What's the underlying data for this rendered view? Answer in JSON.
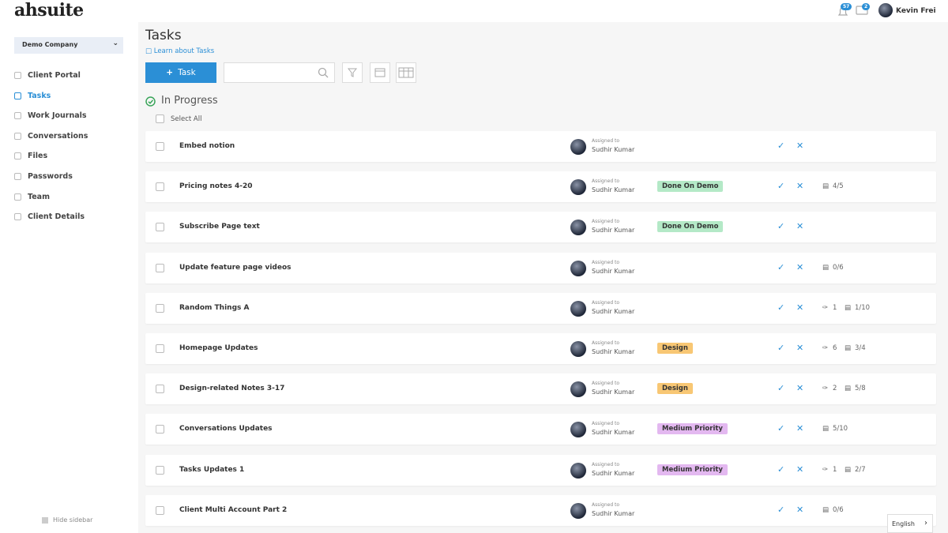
{
  "header": {
    "logo": "ahsuite",
    "notification_count": 57,
    "message_count": 2,
    "user": "Kevin Frei"
  },
  "sidebar": {
    "company": "Demo Company",
    "nav": [
      "Client Portal",
      "Tasks",
      "Work Journals",
      "Conversations",
      "Files",
      "Passwords",
      "Team",
      "Client Details"
    ],
    "active": "Tasks",
    "hide": "Hide sidebar"
  },
  "main": {
    "title": "Tasks",
    "learn_link": "Learn about Tasks",
    "add_button": "Task",
    "section": "In Progress",
    "select_all": "Select All",
    "tasks": [
      {
        "name": "Embed notion",
        "assigned_label": "Assigned to",
        "assignee": "Sudhir Kumar"
      },
      {
        "name": "Pricing notes 4-20",
        "assigned_label": "Assigned to",
        "assignee": "Sudhir Kumar",
        "tag": {
          "label": "Done On Demo",
          "color": "#b4e9c7"
        },
        "checklist": "4/5"
      },
      {
        "name": "Subscribe Page text",
        "assigned_label": "Assigned to",
        "assignee": "Sudhir Kumar",
        "tag": {
          "label": "Done On Demo",
          "color": "#b4e9c7"
        }
      },
      {
        "name": "Update feature page videos",
        "assigned_label": "Assigned to",
        "assignee": "Sudhir Kumar",
        "checklist": "0/6"
      },
      {
        "name": "Random Things A",
        "assigned_label": "Assigned to",
        "assignee": "Sudhir Kumar",
        "attachments": 1,
        "checklist": "1/10"
      },
      {
        "name": "Homepage Updates",
        "assigned_label": "Assigned to",
        "assignee": "Sudhir Kumar",
        "tag": {
          "label": "Design",
          "color": "#f8c774"
        },
        "attachments": 6,
        "checklist": "3/4"
      },
      {
        "name": "Design-related Notes 3-17",
        "assigned_label": "Assigned to",
        "assignee": "Sudhir Kumar",
        "tag": {
          "label": "Design",
          "color": "#f8c774"
        },
        "attachments": 2,
        "checklist": "5/8"
      },
      {
        "name": "Conversations Updates",
        "assigned_label": "Assigned to",
        "assignee": "Sudhir Kumar",
        "tag": {
          "label": "Medium Priority",
          "color": "#e3b8f0"
        },
        "checklist": "5/10"
      },
      {
        "name": "Tasks Updates 1",
        "assigned_label": "Assigned to",
        "assignee": "Sudhir Kumar",
        "tag": {
          "label": "Medium Priority",
          "color": "#e3b8f0"
        },
        "attachments": 1,
        "checklist": "2/7"
      },
      {
        "name": "Client Multi Account Part 2",
        "assigned_label": "Assigned to",
        "assignee": "Sudhir Kumar",
        "checklist": "0/6"
      }
    ]
  },
  "footer": {
    "language": "English"
  }
}
